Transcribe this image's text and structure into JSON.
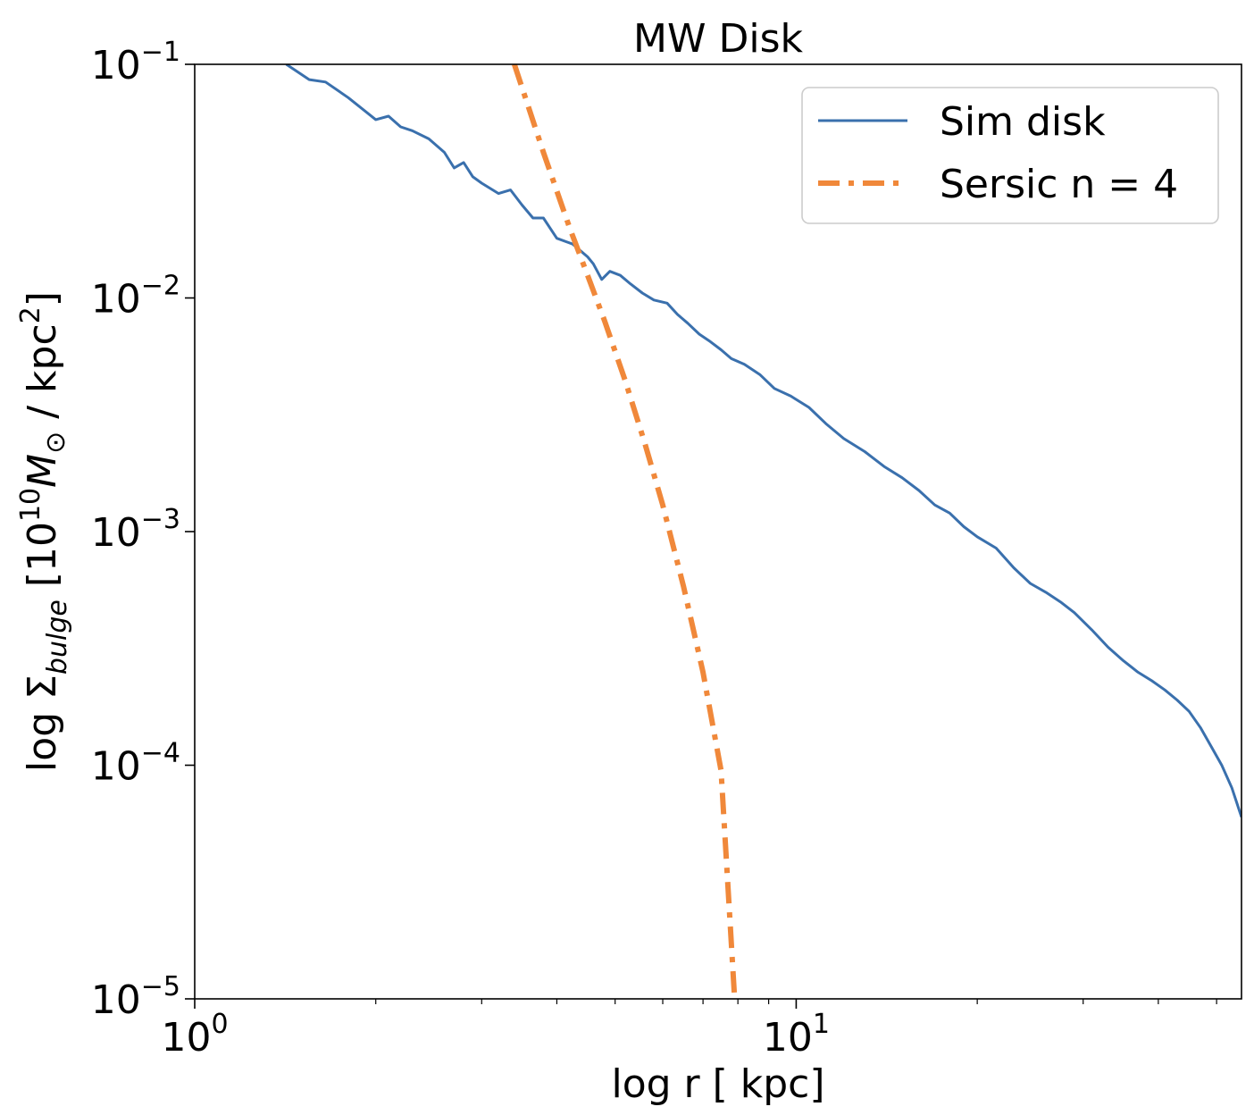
{
  "chart_data": {
    "type": "line",
    "title": "MW Disk",
    "xlabel": "log r [ kpc]",
    "ylabel_parts": {
      "prefix": "log Σ",
      "sub": "bulge",
      "bracket_open": " [10",
      "exp": "10",
      "mass": "M",
      "sun": "⊙",
      "unit": " / kpc",
      "unit_exp": "2",
      "bracket_close": "]"
    },
    "x_scale": "log",
    "y_scale": "log",
    "xlim": [
      1,
      55
    ],
    "ylim": [
      1e-05,
      0.1
    ],
    "x_ticks": [
      {
        "value": 1,
        "base": "10",
        "exp": "0"
      },
      {
        "value": 10,
        "base": "10",
        "exp": "1"
      }
    ],
    "y_ticks": [
      {
        "value": 0.1,
        "base": "10",
        "exp": "−1"
      },
      {
        "value": 0.01,
        "base": "10",
        "exp": "−2"
      },
      {
        "value": 0.001,
        "base": "10",
        "exp": "−3"
      },
      {
        "value": 0.0001,
        "base": "10",
        "exp": "−4"
      },
      {
        "value": 1e-05,
        "base": "10",
        "exp": "−5"
      }
    ],
    "legend_position": "top-right",
    "series": [
      {
        "name": "Sim disk",
        "style": "solid",
        "color": "#3a70ad",
        "x": [
          1.42,
          1.55,
          1.65,
          1.8,
          2.0,
          2.1,
          2.2,
          2.3,
          2.45,
          2.6,
          2.7,
          2.8,
          2.9,
          3.0,
          3.2,
          3.35,
          3.5,
          3.65,
          3.8,
          4.0,
          4.25,
          4.5,
          4.6,
          4.75,
          4.9,
          5.1,
          5.3,
          5.55,
          5.8,
          6.1,
          6.35,
          6.6,
          6.9,
          7.2,
          7.5,
          7.8,
          8.2,
          8.7,
          9.2,
          9.8,
          10.5,
          11.2,
          12.0,
          13.0,
          14.0,
          15.0,
          16.0,
          17.0,
          18.0,
          19.0,
          20.0,
          21.5,
          23.0,
          24.5,
          26.0,
          27.5,
          29.0,
          31.0,
          33.0,
          35.0,
          37.0,
          39.0,
          41.0,
          43.0,
          45.0,
          47.0,
          49.0,
          51.0,
          53.0,
          55.0
        ],
        "y": [
          0.1,
          0.086,
          0.084,
          0.072,
          0.058,
          0.06,
          0.054,
          0.052,
          0.048,
          0.042,
          0.036,
          0.038,
          0.033,
          0.031,
          0.028,
          0.029,
          0.025,
          0.022,
          0.022,
          0.018,
          0.017,
          0.015,
          0.014,
          0.012,
          0.013,
          0.0125,
          0.0115,
          0.0105,
          0.0098,
          0.0095,
          0.0085,
          0.0078,
          0.007,
          0.0065,
          0.006,
          0.0055,
          0.0052,
          0.0047,
          0.0041,
          0.0038,
          0.0034,
          0.0029,
          0.0025,
          0.0022,
          0.0019,
          0.0017,
          0.0015,
          0.0013,
          0.0012,
          0.00105,
          0.00095,
          0.00085,
          0.0007,
          0.0006,
          0.00055,
          0.0005,
          0.00045,
          0.00038,
          0.00032,
          0.00028,
          0.00025,
          0.00023,
          0.00021,
          0.00019,
          0.00017,
          0.000145,
          0.00012,
          0.0001,
          8e-05,
          6e-05
        ]
      },
      {
        "name": "Sersic n = 4",
        "style": "dashdot",
        "color": "#f0883a",
        "x": [
          3.4,
          3.8,
          4.2,
          4.5,
          4.8,
          5.2,
          5.6,
          6.0,
          6.5,
          7.0,
          7.5,
          7.9
        ],
        "y": [
          0.1,
          0.042,
          0.02,
          0.0125,
          0.008,
          0.0044,
          0.0024,
          0.0013,
          0.00058,
          0.00025,
          9.5e-05,
          1e-05
        ]
      }
    ]
  }
}
